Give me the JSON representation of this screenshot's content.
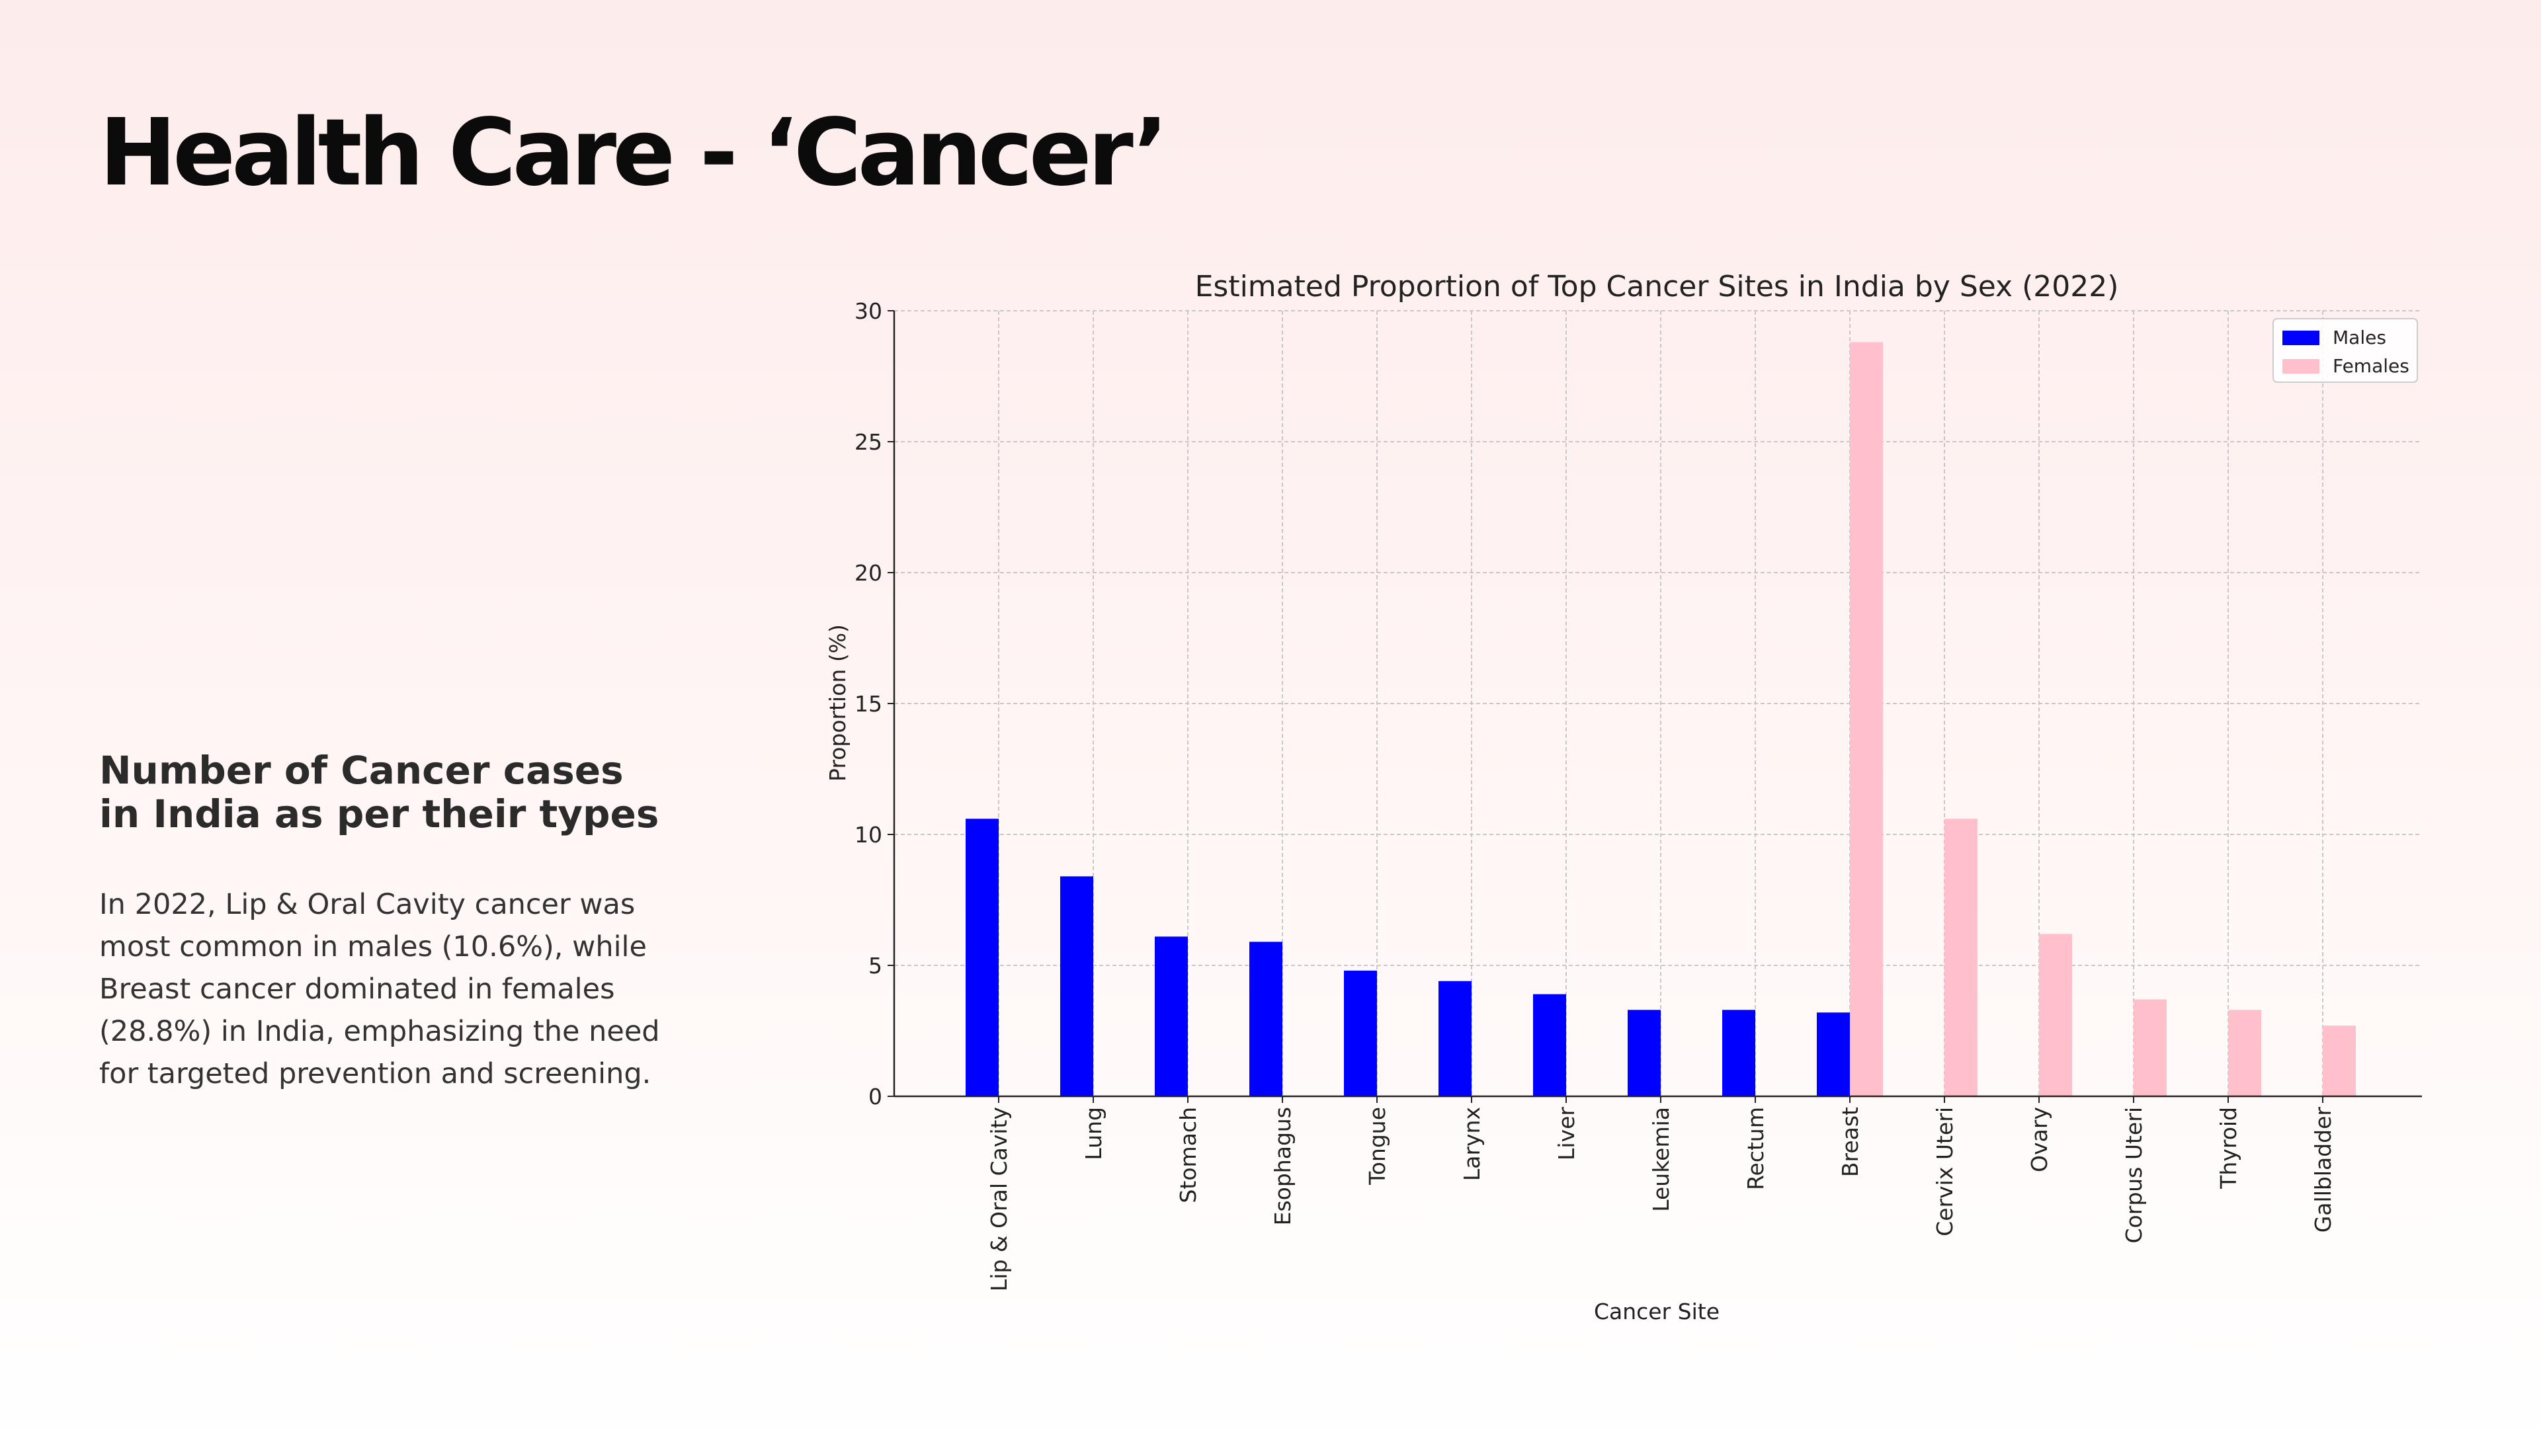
{
  "slide": {
    "title": "Health Care - ‘Cancer’",
    "side_heading": "Number of Cancer cases in India as per their types",
    "side_body": "In 2022, Lip & Oral Cavity cancer was most common in males (10.6%), while Breast cancer dominated in females (28.8%) in India, emphasizing the need for targeted prevention and screening."
  },
  "chart_data": {
    "type": "bar",
    "title": "Estimated Proportion of Top Cancer Sites in India by Sex (2022)",
    "xlabel": "Cancer Site",
    "ylabel": "Proportion (%)",
    "ylim": [
      0,
      30
    ],
    "yticks": [
      0,
      5,
      10,
      15,
      20,
      25,
      30
    ],
    "grid": true,
    "legend_position": "top-right",
    "categories": [
      "Lip & Oral Cavity",
      "Lung",
      "Stomach",
      "Esophagus",
      "Tongue",
      "Larynx",
      "Liver",
      "Leukemia",
      "Rectum",
      "Breast",
      "Cervix Uteri",
      "Ovary",
      "Corpus Uteri",
      "Thyroid",
      "Gallbladder"
    ],
    "series": [
      {
        "name": "Males",
        "color": "#0000ff",
        "values": [
          10.6,
          8.4,
          6.1,
          5.9,
          4.8,
          4.4,
          3.9,
          3.3,
          3.3,
          3.2,
          null,
          null,
          null,
          null,
          null
        ]
      },
      {
        "name": "Females",
        "color": "#ffc0cb",
        "values": [
          null,
          null,
          null,
          null,
          null,
          null,
          null,
          null,
          null,
          28.8,
          10.6,
          6.2,
          3.7,
          3.3,
          2.7
        ]
      }
    ]
  }
}
